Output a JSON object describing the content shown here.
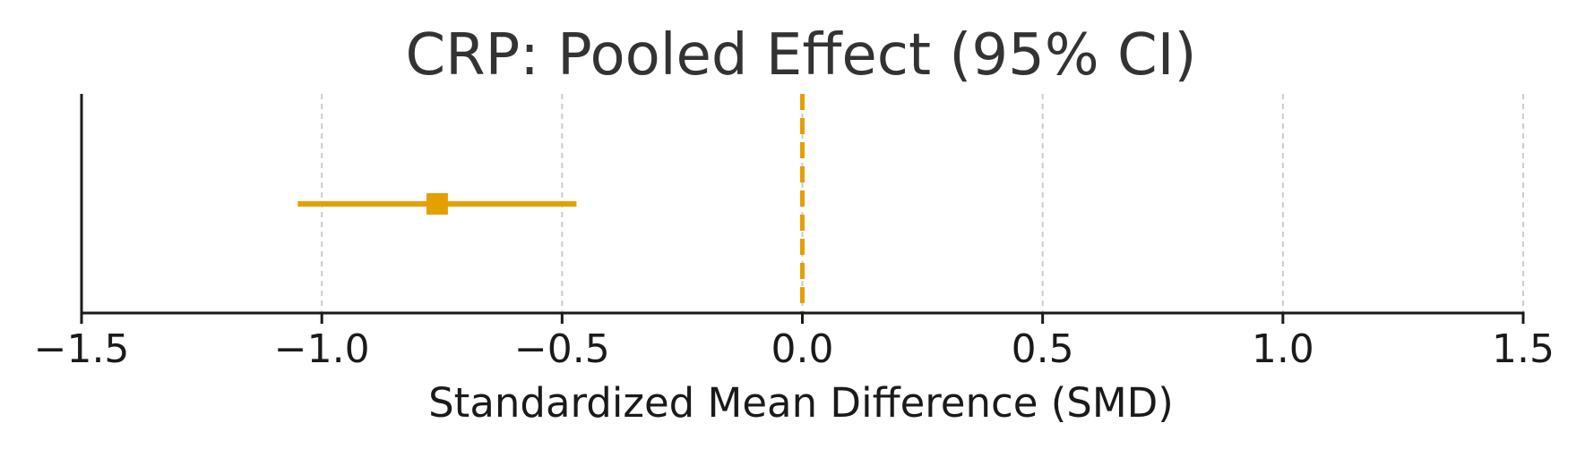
{
  "chart_data": {
    "type": "forest",
    "title": "CRP: Pooled Effect (95% CI)",
    "xlabel": "Standardized Mean Difference (SMD)",
    "ylabel": "",
    "xlim": [
      -1.5,
      1.5
    ],
    "xticks": [
      -1.5,
      -1.0,
      -0.5,
      0.0,
      0.5,
      1.0,
      1.5
    ],
    "xtick_labels": [
      "−1.5",
      "−1.0",
      "−0.5",
      "0.0",
      "0.5",
      "1.0",
      "1.5"
    ],
    "grid": "vertical dashed",
    "reference_line": 0.0,
    "points": [
      {
        "estimate": -0.76,
        "ci_low": -1.05,
        "ci_high": -0.47
      }
    ],
    "colors": {
      "effect": "#E69F00",
      "reference": "#E69F00",
      "grid": "#cccccc",
      "axis": "#1a1a1a",
      "title": "#333333"
    }
  }
}
